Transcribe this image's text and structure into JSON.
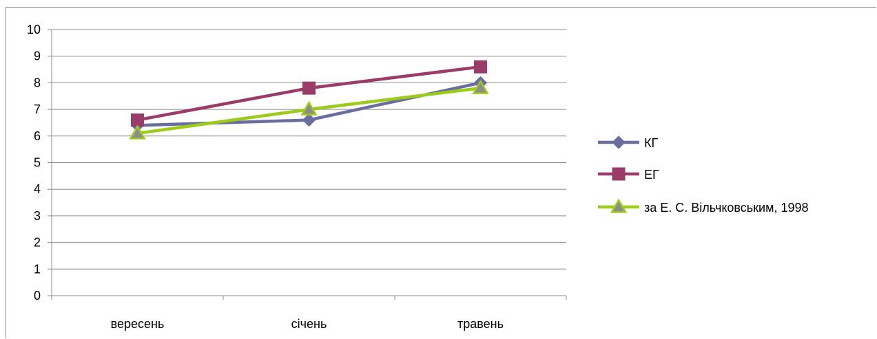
{
  "chart_data": {
    "type": "line",
    "categories": [
      "вересень",
      "січень",
      "травень"
    ],
    "series": [
      {
        "name": "КГ",
        "values": [
          6.4,
          6.6,
          8.0
        ],
        "color": "#6a6e9e",
        "marker": "diamond"
      },
      {
        "name": "ЕГ",
        "values": [
          6.6,
          7.8,
          8.6
        ],
        "color": "#9b3b6a",
        "marker": "square"
      },
      {
        "name": "за Е. С. Вільчковським, 1998",
        "values": [
          6.1,
          7.0,
          7.8
        ],
        "color": "#9ccc1a",
        "marker": "triangle"
      }
    ],
    "ylim": [
      0,
      10
    ],
    "yticks": [
      0,
      1,
      2,
      3,
      4,
      5,
      6,
      7,
      8,
      9,
      10
    ],
    "grid": true,
    "legend_position": "right"
  }
}
